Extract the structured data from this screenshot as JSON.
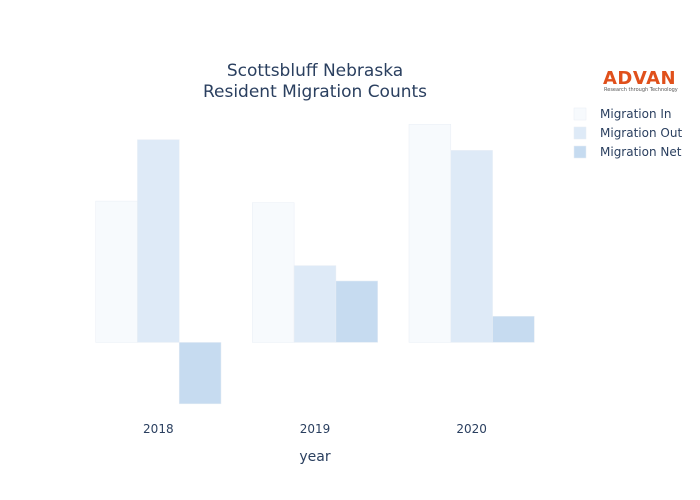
{
  "chart_data": {
    "type": "bar",
    "title": [
      "Scottsbluff Nebraska",
      "Resident Migration Counts"
    ],
    "xlabel": "year",
    "ylabel": "",
    "categories": [
      "2018",
      "2019",
      "2020"
    ],
    "series": [
      {
        "name": "Migration In",
        "values": [
          46,
          45.5,
          71
        ],
        "color": "#f7fafd"
      },
      {
        "name": "Migration Out",
        "values": [
          66,
          25,
          62.5
        ],
        "color": "#deeaf7"
      },
      {
        "name": "Migration Net",
        "values": [
          -20,
          20,
          8.5
        ],
        "color": "#c6dbf0"
      }
    ],
    "ylim": [
      -22,
      75
    ],
    "grid": false,
    "legend_position": "top-right"
  },
  "logo": {
    "name": "ADVAN",
    "tagline": "Research through Technology"
  }
}
